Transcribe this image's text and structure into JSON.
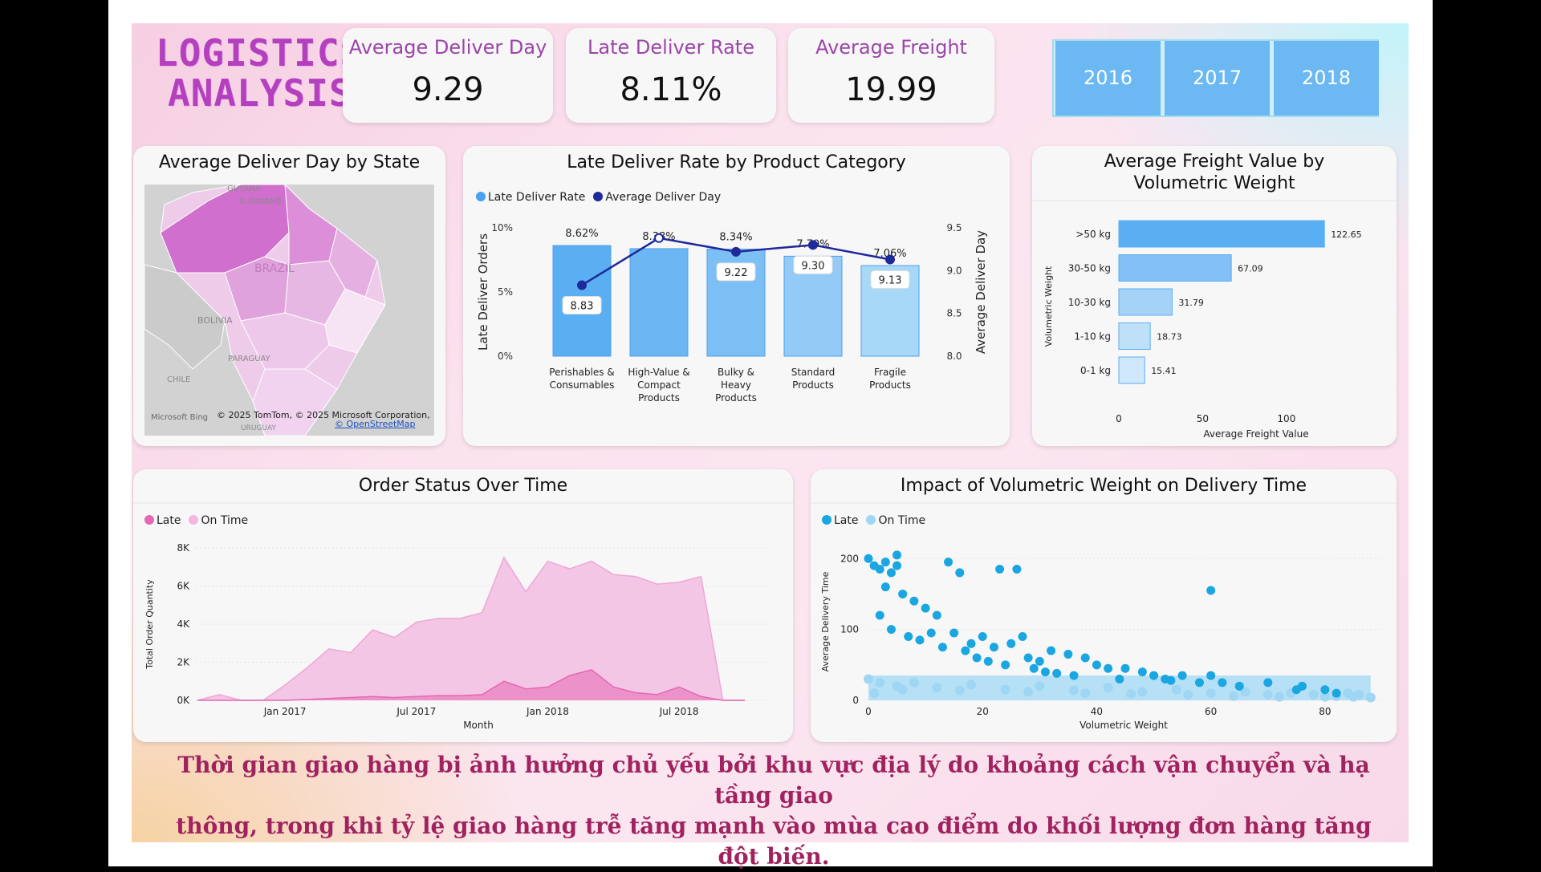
{
  "header": {
    "logo_line1": "LOGISTICS",
    "logo_line2": "ANALYSIS"
  },
  "kpis": [
    {
      "title": "Average Deliver Day",
      "value": "9.29"
    },
    {
      "title": "Late Deliver Rate",
      "value": "8.11%"
    },
    {
      "title": "Average Freight",
      "value": "19.99"
    }
  ],
  "year_filter": [
    "2016",
    "2017",
    "2018"
  ],
  "map": {
    "title": "Average Deliver Day by State",
    "labels": {
      "guyana": "GUYANA",
      "suriname": "SURINAME",
      "brazil": "BRAZIL",
      "bolivia": "BOLIVIA",
      "paraguay": "PARAGUAY",
      "chile": "CHILE",
      "uruguay": "URUGUAY"
    },
    "attribution": "© 2025 TomTom, © 2025 Microsoft Corporation,",
    "osm_link": "© OpenStreetMap",
    "bing": "Microsoft Bing"
  },
  "chart_data": [
    {
      "id": "late-rate-by-category",
      "type": "bar",
      "title": "Late Deliver Rate by Product Category",
      "categories": [
        "Perishables & Consumables",
        "High-Value & Compact Products",
        "Bulky & Heavy Products",
        "Standard Products",
        "Fragile Products"
      ],
      "category_lines": [
        [
          "Perishables &",
          "Consumables"
        ],
        [
          "High-Value &",
          "Compact",
          "Products"
        ],
        [
          "Bulky &",
          "Heavy",
          "Products"
        ],
        [
          "Standard",
          "Products"
        ],
        [
          "Fragile",
          "Products"
        ]
      ],
      "series": [
        {
          "name": "Late Deliver Rate",
          "axis": "left",
          "kind": "bar",
          "values": [
            8.62,
            8.38,
            8.34,
            7.79,
            7.06
          ],
          "labels": [
            "8.62%",
            "8.38%",
            "8.34%",
            "7.79%",
            "7.06%"
          ]
        },
        {
          "name": "Average Deliver Day",
          "axis": "right",
          "kind": "line",
          "values": [
            8.83,
            9.38,
            9.22,
            9.3,
            9.13
          ],
          "labels": [
            "8.83",
            "",
            "9.22",
            "9.30",
            "9.13"
          ]
        }
      ],
      "ylabel": "Late Deliver Orders",
      "y2label": "Average Deliver Day",
      "ylim": [
        0,
        10
      ],
      "y2lim": [
        8.0,
        9.5
      ],
      "yticks": [
        "0%",
        "5%",
        "10%"
      ],
      "y2ticks": [
        "8.0",
        "8.5",
        "9.0",
        "9.5"
      ],
      "legend": [
        "Late Deliver Rate",
        "Average Deliver Day"
      ],
      "colors": {
        "bar_left": "#5aaef2",
        "bar_right": "#a8d8f8",
        "line": "#1f2a9a"
      }
    },
    {
      "id": "freight-by-weight",
      "type": "bar",
      "orientation": "horizontal",
      "title": "Average Freight Value by Volumetric Weight",
      "categories": [
        ">50 kg",
        "30-50 kg",
        "10-30 kg",
        "1-10 kg",
        "0-1 kg"
      ],
      "values": [
        122.65,
        67.09,
        31.79,
        18.73,
        15.41
      ],
      "labels": [
        "122.65",
        "67.09",
        "31.79",
        "18.73",
        "15.41"
      ],
      "xlabel": "Average Freight Value",
      "ylabel": "Volumetric Weight",
      "xticks": [
        "0",
        "50",
        "100"
      ],
      "xlim": [
        0,
        135
      ],
      "colors": [
        "#5aaef2",
        "#82c0f5",
        "#a5d2f7",
        "#bfe0f9",
        "#cfe8fb"
      ]
    },
    {
      "id": "order-status-over-time",
      "type": "area",
      "title": "Order Status Over Time",
      "x": [
        "Sep 2016",
        "Oct 2016",
        "Nov 2016",
        "Dec 2016",
        "Jan 2017",
        "Feb 2017",
        "Mar 2017",
        "Apr 2017",
        "May 2017",
        "Jun 2017",
        "Jul 2017",
        "Aug 2017",
        "Sep 2017",
        "Oct 2017",
        "Nov 2017",
        "Dec 2017",
        "Jan 2018",
        "Feb 2018",
        "Mar 2018",
        "Apr 2018",
        "May 2018",
        "Jun 2018",
        "Jul 2018",
        "Aug 2018",
        "Sep 2018",
        "Oct 2018"
      ],
      "series": [
        {
          "name": "On Time",
          "values": [
            0,
            300,
            0,
            0,
            800,
            1700,
            2700,
            2500,
            3700,
            3300,
            4100,
            4300,
            4300,
            4600,
            7500,
            5700,
            7300,
            6900,
            7300,
            6600,
            6500,
            6100,
            6200,
            6500,
            0,
            0
          ]
        },
        {
          "name": "Late",
          "values": [
            0,
            0,
            0,
            0,
            0,
            50,
            100,
            150,
            200,
            150,
            200,
            250,
            250,
            300,
            1000,
            600,
            700,
            1300,
            1600,
            700,
            400,
            300,
            700,
            200,
            0,
            0
          ]
        }
      ],
      "legend": [
        "Late",
        "On Time"
      ],
      "xlabel": "Month",
      "ylabel": "Total Order Quantity",
      "yticks": [
        "0K",
        "2K",
        "4K",
        "6K",
        "8K"
      ],
      "xticks": [
        "Jan 2017",
        "Jul 2017",
        "Jan 2018",
        "Jul 2018"
      ],
      "ylim": [
        0,
        8000
      ],
      "colors": {
        "late": "#e667b3",
        "on_time": "#f3b6df"
      }
    },
    {
      "id": "weight-vs-delivery",
      "type": "scatter",
      "title": "Impact of Volumetric Weight on Delivery Time",
      "series": [
        {
          "name": "Late",
          "points": [
            [
              0,
              200
            ],
            [
              1,
              190
            ],
            [
              2,
              185
            ],
            [
              3,
              195
            ],
            [
              4,
              180
            ],
            [
              5,
              205
            ],
            [
              5,
              190
            ],
            [
              3,
              160
            ],
            [
              6,
              150
            ],
            [
              8,
              140
            ],
            [
              10,
              130
            ],
            [
              12,
              120
            ],
            [
              15,
              95
            ],
            [
              16,
              180
            ],
            [
              18,
              80
            ],
            [
              20,
              90
            ],
            [
              22,
              75
            ],
            [
              25,
              80
            ],
            [
              27,
              90
            ],
            [
              28,
              60
            ],
            [
              30,
              55
            ],
            [
              32,
              70
            ],
            [
              35,
              65
            ],
            [
              38,
              60
            ],
            [
              40,
              50
            ],
            [
              42,
              45
            ],
            [
              45,
              45
            ],
            [
              48,
              40
            ],
            [
              50,
              35
            ],
            [
              52,
              30
            ],
            [
              55,
              35
            ],
            [
              58,
              25
            ],
            [
              60,
              35
            ],
            [
              62,
              25
            ],
            [
              65,
              20
            ],
            [
              70,
              25
            ],
            [
              75,
              15
            ],
            [
              76,
              20
            ],
            [
              80,
              15
            ],
            [
              82,
              10
            ],
            [
              26,
              185
            ],
            [
              23,
              185
            ],
            [
              14,
              195
            ],
            [
              60,
              155
            ],
            [
              2,
              120
            ],
            [
              4,
              100
            ],
            [
              7,
              90
            ],
            [
              9,
              85
            ],
            [
              11,
              95
            ],
            [
              13,
              75
            ],
            [
              17,
              70
            ],
            [
              19,
              60
            ],
            [
              21,
              55
            ],
            [
              24,
              50
            ],
            [
              29,
              45
            ],
            [
              31,
              40
            ],
            [
              33,
              38
            ],
            [
              36,
              35
            ],
            [
              44,
              30
            ],
            [
              53,
              28
            ]
          ]
        },
        {
          "name": "On Time",
          "points": [
            [
              0,
              30
            ],
            [
              2,
              25
            ],
            [
              5,
              20
            ],
            [
              8,
              25
            ],
            [
              12,
              18
            ],
            [
              18,
              22
            ],
            [
              24,
              15
            ],
            [
              30,
              20
            ],
            [
              36,
              14
            ],
            [
              42,
              18
            ],
            [
              48,
              12
            ],
            [
              54,
              15
            ],
            [
              60,
              10
            ],
            [
              66,
              12
            ],
            [
              70,
              8
            ],
            [
              74,
              10
            ],
            [
              78,
              8
            ],
            [
              82,
              6
            ],
            [
              85,
              5
            ],
            [
              88,
              4
            ],
            [
              86,
              8
            ],
            [
              84,
              10
            ],
            [
              80,
              5
            ],
            [
              72,
              5
            ],
            [
              64,
              6
            ],
            [
              56,
              8
            ],
            [
              46,
              9
            ],
            [
              38,
              10
            ],
            [
              28,
              12
            ],
            [
              16,
              14
            ],
            [
              6,
              15
            ],
            [
              1,
              10
            ]
          ]
        }
      ],
      "legend": [
        "Late",
        "On Time"
      ],
      "xlabel": "Volumetric Weight",
      "ylabel": "Average Delivery Time",
      "xticks": [
        "0",
        "20",
        "40",
        "60",
        "80"
      ],
      "yticks": [
        "0",
        "100",
        "200"
      ],
      "xlim": [
        0,
        90
      ],
      "ylim": [
        0,
        215
      ],
      "colors": {
        "late": "#1aa6e0",
        "on_time": "#9fd6f3"
      }
    }
  ],
  "footer": {
    "line1": "Thời gian giao hàng bị ảnh hưởng chủ yếu bởi khu vực địa lý do khoảng cách vận chuyển và hạ tầng giao",
    "line2": "thông, trong khi tỷ lệ giao hàng trễ tăng mạnh vào mùa cao điểm do khối lượng đơn hàng tăng đột biến."
  },
  "window": {
    "exit_icon": "exit-fullscreen-icon"
  }
}
